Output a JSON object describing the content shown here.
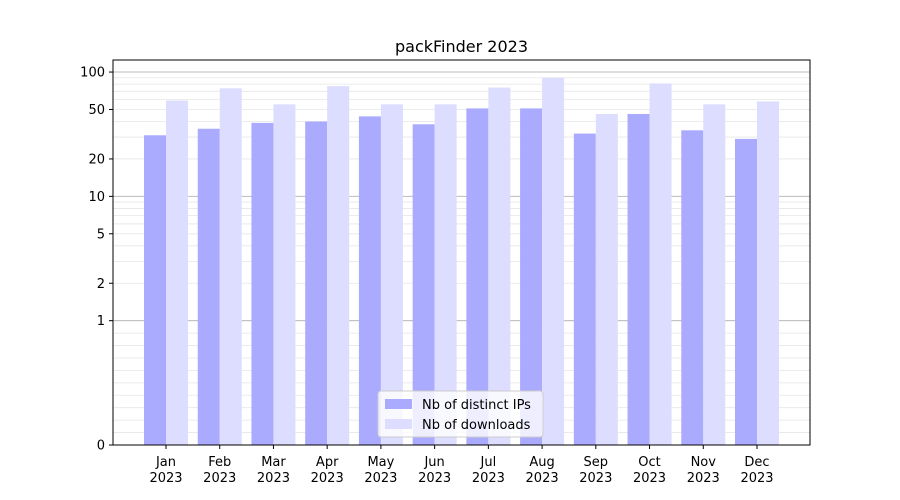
{
  "chart_data": {
    "type": "bar",
    "title": "packFinder 2023",
    "xlabel": "",
    "ylabel": "",
    "y_scale": "symlog",
    "ylim": [
      0,
      125
    ],
    "y_ticks": [
      0,
      1,
      2,
      5,
      10,
      20,
      50,
      100
    ],
    "grid": "horizontal",
    "legend_position": "bottom-center",
    "categories": [
      "Jan\n2023",
      "Feb\n2023",
      "Mar\n2023",
      "Apr\n2023",
      "May\n2023",
      "Jun\n2023",
      "Jul\n2023",
      "Aug\n2023",
      "Sep\n2023",
      "Oct\n2023",
      "Nov\n2023",
      "Dec\n2023"
    ],
    "series": [
      {
        "name": "Nb of distinct IPs",
        "color": "#aaaaff",
        "values": [
          31,
          35,
          39,
          40,
          44,
          38,
          51,
          51,
          32,
          46,
          34,
          29
        ]
      },
      {
        "name": "Nb of downloads",
        "color": "#ddddff",
        "values": [
          59,
          74,
          55,
          77,
          55,
          55,
          75,
          90,
          46,
          81,
          55,
          58
        ]
      }
    ]
  }
}
